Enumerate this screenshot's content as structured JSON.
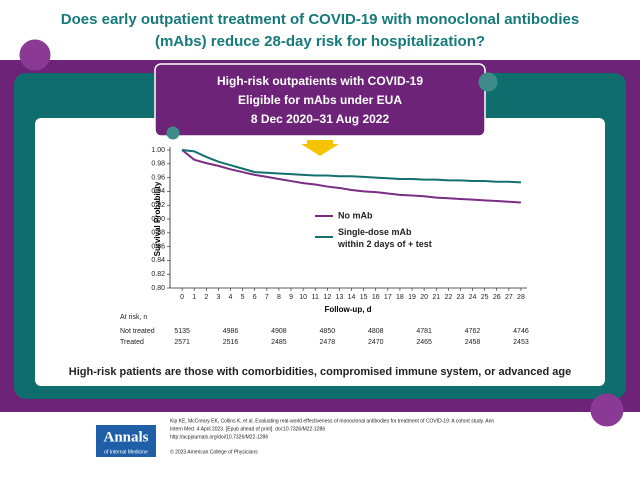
{
  "header": {
    "title_lines": [
      "Does early outpatient treatment of COVID-19 with monoclonal antibodies",
      "(mAbs) reduce 28-day risk for hospitalization?"
    ]
  },
  "population": {
    "lines": [
      "High-risk outpatients with COVID-19",
      "Eligible for mAbs under EUA",
      "8 Dec 2020–31 Aug 2022"
    ]
  },
  "chart_data": {
    "type": "line",
    "y_label": "Survival Probability",
    "x_label": "Follow-up, d",
    "x": [
      0,
      1,
      2,
      3,
      4,
      5,
      6,
      7,
      8,
      9,
      10,
      11,
      12,
      13,
      14,
      15,
      16,
      17,
      18,
      19,
      20,
      21,
      22,
      23,
      24,
      25,
      26,
      27,
      28
    ],
    "series": [
      {
        "name": "No mAb",
        "color": "#7b2c83",
        "values": [
          1.0,
          0.986,
          0.981,
          0.977,
          0.972,
          0.968,
          0.964,
          0.961,
          0.958,
          0.955,
          0.952,
          0.95,
          0.947,
          0.945,
          0.942,
          0.94,
          0.939,
          0.937,
          0.935,
          0.934,
          0.933,
          0.931,
          0.93,
          0.929,
          0.928,
          0.927,
          0.926,
          0.925,
          0.924
        ]
      },
      {
        "name": "Single-dose mAb within 2 days of + test",
        "color": "#12706f",
        "values": [
          1.0,
          0.998,
          0.99,
          0.983,
          0.978,
          0.973,
          0.968,
          0.967,
          0.966,
          0.965,
          0.964,
          0.963,
          0.963,
          0.962,
          0.962,
          0.961,
          0.96,
          0.959,
          0.958,
          0.958,
          0.957,
          0.957,
          0.956,
          0.956,
          0.955,
          0.955,
          0.954,
          0.954,
          0.953
        ]
      }
    ],
    "xlim": [
      -1,
      28.5
    ],
    "xticks": [
      0,
      1,
      2,
      3,
      4,
      5,
      6,
      7,
      8,
      9,
      10,
      11,
      12,
      13,
      14,
      15,
      16,
      17,
      18,
      19,
      20,
      21,
      22,
      23,
      24,
      25,
      26,
      27,
      28
    ],
    "ylim": [
      0.8,
      1.0
    ],
    "yticks": [
      {
        "value": 0.8,
        "label": "0.80"
      },
      {
        "value": 0.82,
        "label": "0.82"
      },
      {
        "value": 0.84,
        "label": "0.84"
      },
      {
        "value": 0.86,
        "label": "0.86"
      },
      {
        "value": 0.88,
        "label": "0.88"
      },
      {
        "value": 0.9,
        "label": "0.90"
      },
      {
        "value": 0.92,
        "label": "0.92"
      },
      {
        "value": 0.94,
        "label": "0.94"
      },
      {
        "value": 0.96,
        "label": "0.96"
      },
      {
        "value": 0.98,
        "label": "0.98"
      },
      {
        "value": 1.0,
        "label": "1.00"
      }
    ]
  },
  "risk_table": {
    "title": "At risk, n",
    "rows": [
      {
        "label": "Not treated",
        "values": [
          5135,
          4986,
          4908,
          4850,
          4808,
          4781,
          4762,
          4746
        ]
      },
      {
        "label": "Treated",
        "values": [
          2571,
          2516,
          2485,
          2478,
          2470,
          2465,
          2458,
          2453
        ]
      }
    ]
  },
  "note": "High-risk patients are those with comorbidities, compromised immune system, or advanced age",
  "footer": {
    "logo": [
      "Annals",
      "of Internal Medicine"
    ],
    "citation_lines": [
      "Kip KE, McCreary EK, Collins K, et al. Evaluating real-world effectiveness of monoclonal antibodies for treatment of COVID-19: A cohort study. Ann",
      "Intern Med. 4 April 2023. [Epub ahead of print]. doi:10.7326/M22-1286",
      "http://acpjournals.org/doi/10.7326/M22-1286"
    ],
    "copyright": "© 2023 American College of Physicians"
  }
}
